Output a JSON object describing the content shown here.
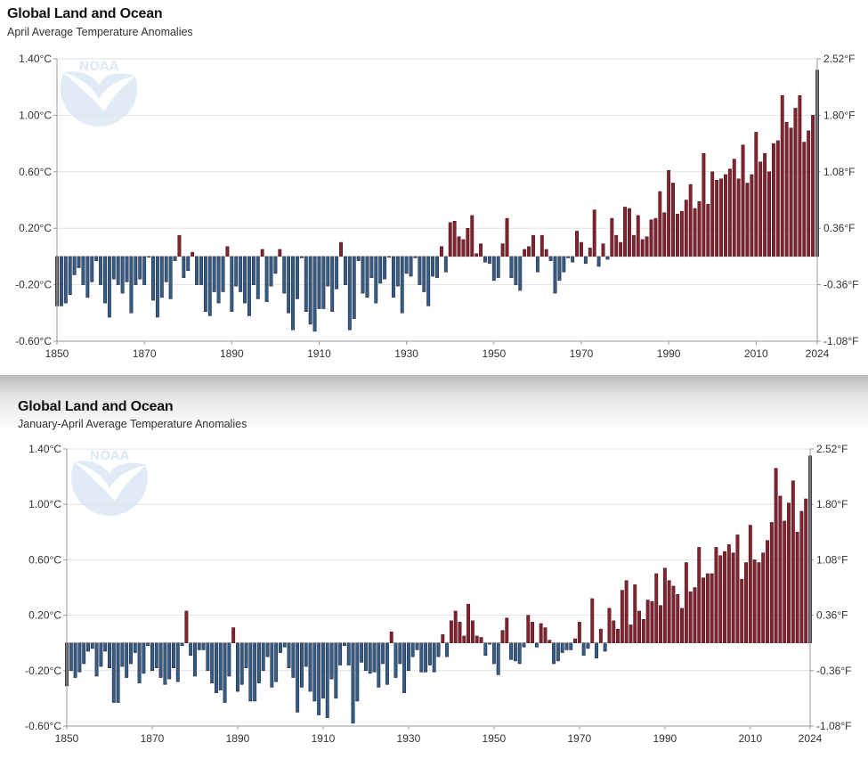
{
  "chart_data": [
    {
      "type": "bar",
      "title": "Global Land and Ocean",
      "subtitle": "April Average Temperature Anomalies",
      "logo_text": "NOAA",
      "xlabel": "",
      "ylabel": "",
      "x_start": 1850,
      "x_end": 2024,
      "ylim": [
        -0.6,
        1.4
      ],
      "grid": true,
      "y_ticks": [
        -0.6,
        -0.2,
        0.2,
        0.6,
        1.0,
        1.4
      ],
      "y_tick_labels_left": [
        "-0.60°C",
        "-0.20°C",
        "0.20°C",
        "0.60°C",
        "1.00°C",
        "1.40°C"
      ],
      "y_tick_labels_right": [
        "-1.08°F",
        "-0.36°F",
        "0.36°F",
        "1.08°F",
        "1.80°F",
        "2.52°F"
      ],
      "x_ticks": [
        1850,
        1870,
        1890,
        1910,
        1930,
        1950,
        1970,
        1990,
        2010,
        2024
      ],
      "x_tick_labels": [
        "1850",
        "1870",
        "1890",
        "1910",
        "1930",
        "1950",
        "1970",
        "1990",
        "2010",
        "2024"
      ],
      "colors": {
        "positive": "#8a1f2d",
        "negative": "#2f5d8c",
        "highlight": "#555555",
        "stroke": "#2a1a1f"
      },
      "values": [
        -0.35,
        -0.35,
        -0.33,
        -0.27,
        -0.13,
        -0.08,
        -0.2,
        -0.29,
        -0.18,
        -0.03,
        -0.2,
        -0.33,
        -0.43,
        -0.16,
        -0.2,
        -0.26,
        -0.18,
        -0.4,
        -0.2,
        -0.16,
        -0.2,
        0.0,
        -0.31,
        -0.43,
        -0.29,
        -0.18,
        -0.3,
        -0.03,
        0.15,
        -0.15,
        -0.1,
        0.03,
        -0.2,
        -0.2,
        -0.39,
        -0.42,
        -0.25,
        -0.33,
        -0.25,
        0.07,
        -0.39,
        -0.21,
        -0.25,
        -0.33,
        -0.42,
        -0.2,
        -0.3,
        0.05,
        -0.32,
        -0.21,
        -0.12,
        0.05,
        -0.26,
        -0.4,
        -0.52,
        -0.3,
        -0.01,
        -0.39,
        -0.48,
        -0.53,
        -0.37,
        -0.37,
        -0.21,
        -0.39,
        -0.23,
        0.1,
        -0.2,
        -0.52,
        -0.44,
        -0.03,
        -0.26,
        -0.29,
        -0.15,
        -0.33,
        -0.19,
        -0.16,
        0.0,
        -0.29,
        -0.21,
        -0.4,
        -0.12,
        -0.14,
        -0.01,
        -0.2,
        -0.25,
        -0.35,
        -0.14,
        -0.15,
        0.07,
        -0.11,
        0.24,
        0.25,
        0.14,
        0.12,
        0.2,
        0.29,
        0.02,
        0.09,
        -0.04,
        -0.05,
        -0.17,
        -0.15,
        0.09,
        0.27,
        -0.15,
        -0.2,
        -0.24,
        0.05,
        0.07,
        0.15,
        -0.11,
        0.15,
        0.05,
        -0.03,
        -0.26,
        -0.17,
        -0.11,
        -0.01,
        -0.04,
        0.18,
        0.1,
        -0.05,
        0.06,
        0.33,
        -0.07,
        0.09,
        -0.02,
        0.27,
        0.15,
        0.1,
        0.35,
        0.34,
        0.15,
        0.29,
        0.12,
        0.14,
        0.26,
        0.27,
        0.46,
        0.31,
        0.61,
        0.52,
        0.3,
        0.32,
        0.4,
        0.51,
        0.34,
        0.39,
        0.73,
        0.37,
        0.6,
        0.54,
        0.55,
        0.58,
        0.62,
        0.69,
        0.55,
        0.79,
        0.52,
        0.58,
        0.88,
        0.67,
        0.73,
        0.6,
        0.8,
        0.82,
        1.14,
        0.95,
        0.91,
        1.05,
        1.14,
        0.81,
        0.89,
        1.0,
        1.32
      ]
    },
    {
      "type": "bar",
      "title": "Global Land and Ocean",
      "subtitle": "January-April Average Temperature Anomalies",
      "logo_text": "NOAA",
      "xlabel": "",
      "ylabel": "",
      "x_start": 1850,
      "x_end": 2024,
      "ylim": [
        -0.6,
        1.4
      ],
      "grid": true,
      "y_ticks": [
        -0.6,
        -0.2,
        0.2,
        0.6,
        1.0,
        1.4
      ],
      "y_tick_labels_left": [
        "-0.60°C",
        "-0.20°C",
        "0.20°C",
        "0.60°C",
        "1.00°C",
        "1.40°C"
      ],
      "y_tick_labels_right": [
        "-1.08°F",
        "-0.36°F",
        "0.36°F",
        "1.08°F",
        "1.80°F",
        "2.52°F"
      ],
      "x_ticks": [
        1850,
        1870,
        1890,
        1910,
        1930,
        1950,
        1970,
        1990,
        2010,
        2024
      ],
      "x_tick_labels": [
        "1850",
        "1870",
        "1890",
        "1910",
        "1930",
        "1950",
        "1970",
        "1990",
        "2010",
        "2024"
      ],
      "colors": {
        "positive": "#8a1f2d",
        "negative": "#2f5d8c",
        "highlight": "#555555",
        "stroke": "#2a1a1f"
      },
      "values": [
        -0.31,
        -0.2,
        -0.25,
        -0.21,
        -0.15,
        -0.06,
        -0.04,
        -0.24,
        -0.17,
        -0.06,
        -0.18,
        -0.43,
        -0.43,
        -0.17,
        -0.25,
        -0.15,
        -0.07,
        -0.29,
        -0.22,
        -0.02,
        -0.2,
        -0.18,
        -0.25,
        -0.3,
        -0.26,
        -0.18,
        -0.28,
        -0.02,
        0.23,
        -0.09,
        -0.24,
        -0.05,
        -0.05,
        -0.2,
        -0.29,
        -0.36,
        -0.34,
        -0.43,
        -0.24,
        0.11,
        -0.35,
        -0.3,
        -0.18,
        -0.42,
        -0.42,
        -0.29,
        -0.2,
        -0.1,
        -0.32,
        -0.28,
        -0.07,
        -0.03,
        -0.18,
        -0.25,
        -0.5,
        -0.32,
        -0.17,
        -0.35,
        -0.42,
        -0.52,
        -0.4,
        -0.54,
        -0.26,
        -0.4,
        -0.16,
        -0.02,
        -0.16,
        -0.58,
        -0.42,
        -0.14,
        -0.2,
        -0.22,
        -0.21,
        -0.32,
        -0.15,
        -0.3,
        0.08,
        -0.25,
        -0.15,
        -0.36,
        -0.2,
        -0.1,
        -0.05,
        -0.21,
        -0.21,
        -0.16,
        -0.21,
        -0.1,
        0.06,
        -0.1,
        0.16,
        0.23,
        0.15,
        0.05,
        0.28,
        0.16,
        0.05,
        0.04,
        -0.09,
        -0.01,
        -0.15,
        -0.23,
        0.09,
        0.18,
        -0.12,
        -0.13,
        -0.15,
        -0.03,
        0.2,
        0.15,
        -0.03,
        0.14,
        0.11,
        0.02,
        -0.15,
        -0.13,
        -0.07,
        -0.05,
        -0.05,
        0.03,
        0.15,
        -0.09,
        -0.04,
        0.32,
        -0.11,
        0.1,
        -0.06,
        0.25,
        0.16,
        0.1,
        0.38,
        0.45,
        0.13,
        0.42,
        0.23,
        0.17,
        0.31,
        0.3,
        0.5,
        0.27,
        0.54,
        0.45,
        0.41,
        0.35,
        0.25,
        0.58,
        0.37,
        0.4,
        0.69,
        0.47,
        0.5,
        0.5,
        0.69,
        0.63,
        0.66,
        0.71,
        0.65,
        0.78,
        0.46,
        0.58,
        0.85,
        0.6,
        0.58,
        0.65,
        0.74,
        0.87,
        1.26,
        1.06,
        0.88,
        1.01,
        1.17,
        0.8,
        0.95,
        1.04,
        1.35
      ]
    }
  ]
}
